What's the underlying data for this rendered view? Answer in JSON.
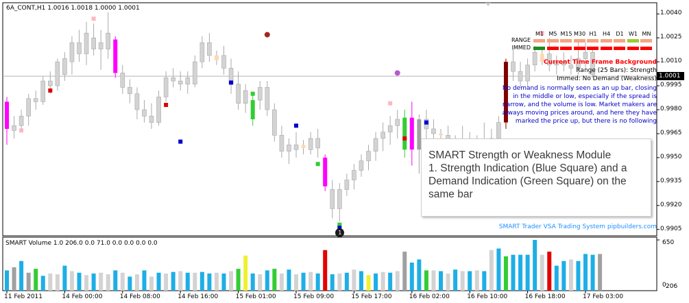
{
  "header": {
    "symbol_line": "6A_CONT,H1  1.0016 1.0018 1.0000 1.0001"
  },
  "volume_panel": {
    "title": "SMART Volume 1.0 206.0 0.0 71.0 0.0 0.0 0.0 0.0",
    "y_ticks": [
      "650",
      "0",
      "206"
    ]
  },
  "mtf_table": {
    "timeframes": [
      "M1",
      "M5",
      "M15",
      "M30",
      "H1",
      "H4",
      "D1",
      "W1",
      "MN"
    ],
    "rows": [
      {
        "label": "RANGE",
        "colors": [
          "#f4a582",
          "#f4a582",
          "#f4a582",
          "#f4a582",
          "#f4a582",
          "#f4a582",
          "#f4a582",
          "#9acd32",
          "#f4a582"
        ]
      },
      {
        "label": "IMMED",
        "colors": [
          "#228b22",
          "#ff0000",
          "#ff0000",
          "#ff0000",
          "#ff0000",
          "#ff0000",
          "#ff0000",
          "#ff0000",
          "#ff0000"
        ]
      }
    ]
  },
  "info_panel": {
    "title": "Current Time Frame Background",
    "range_line": "Range (25 Bars): Strength",
    "immed_line": "Immed: No Demand (Weakness)",
    "description": "No demand is normally seen as an up bar, closing in the middle or low, especially if the spread is narrow, and the volume is low. Market makers are always moving prices around, and here they have marked the price up, but there is no following"
  },
  "smart_box": {
    "lines": [
      "SMART Strength or Weakness Module",
      "1. Strength Indication (Blue Square) and a",
      "Demand Indication (Green Square) on the",
      "same bar"
    ]
  },
  "footer": {
    "brand": "SMART Trader VSA Trading System pipbuilders.com"
  },
  "price_tag": "1.0001",
  "marker_label": "1",
  "colors": {
    "candle_neutral": "#d3d3d3",
    "candle_outline": "#a9a9a9",
    "magenta": "#ff00ff",
    "green": "#32cd32",
    "maroon": "#800000",
    "gray_bar": "#a0a0a0",
    "blue_square": "#0000cd",
    "red_square": "#dc0000",
    "pink_square": "#ffb6c1",
    "vol_light": "#d3d3d3",
    "vol_blue": "#1eaee6",
    "vol_green": "#32cd32",
    "vol_red": "#e60000",
    "vol_gray": "#a0a0a0",
    "vol_yellow": "#f0f032"
  },
  "chart_data": {
    "type": "candlestick",
    "symbol": "6A_CONT",
    "timeframe": "H1",
    "y_ticks": [
      "1.0040",
      "1.0025",
      "1.0010",
      "0.9995",
      "0.9980",
      "0.9965",
      "0.9950",
      "0.9935",
      "0.9920",
      "0.9905"
    ],
    "ylim": [
      0.9901,
      1.0047
    ],
    "x_ticks": [
      "11 Feb 2011",
      "14 Feb 00:00",
      "14 Feb 08:00",
      "14 Feb 16:00",
      "15 Feb 01:00",
      "15 Feb 09:00",
      "15 Feb 17:00",
      "16 Feb 02:00",
      "16 Feb 10:00",
      "16 Feb 18:00",
      "17 Feb 03:00"
    ],
    "x_tick_bars": [
      0,
      8,
      16,
      24,
      32,
      40,
      48,
      56,
      64,
      72,
      80
    ],
    "current_price": 1.0001,
    "candles": [
      {
        "o": 0.9968,
        "h": 0.9988,
        "l": 0.9958,
        "c": 0.9985,
        "t": "magenta"
      },
      {
        "o": 0.997,
        "h": 0.9976,
        "l": 0.9962,
        "c": 0.9967,
        "t": "n"
      },
      {
        "o": 0.997,
        "h": 0.998,
        "l": 0.9966,
        "c": 0.9976,
        "t": "n"
      },
      {
        "o": 0.9976,
        "h": 0.999,
        "l": 0.997,
        "c": 0.9987,
        "t": "n"
      },
      {
        "o": 0.9987,
        "h": 0.9992,
        "l": 0.998,
        "c": 0.9985,
        "t": "n"
      },
      {
        "o": 0.9985,
        "h": 1.0001,
        "l": 0.9983,
        "c": 0.9998,
        "t": "n"
      },
      {
        "o": 0.9998,
        "h": 1.0004,
        "l": 0.999,
        "c": 0.9995,
        "t": "n"
      },
      {
        "o": 0.9995,
        "h": 1.0012,
        "l": 0.9992,
        "c": 1.001,
        "t": "n"
      },
      {
        "o": 1.0002,
        "h": 1.0016,
        "l": 0.9998,
        "c": 1.0012,
        "t": "n"
      },
      {
        "o": 1.001,
        "h": 1.0026,
        "l": 1.0002,
        "c": 1.0022,
        "t": "n"
      },
      {
        "o": 1.0022,
        "h": 1.003,
        "l": 1.001,
        "c": 1.0015,
        "t": "n"
      },
      {
        "o": 1.0015,
        "h": 1.0035,
        "l": 1.0008,
        "c": 1.0028,
        "t": "n"
      },
      {
        "o": 1.0025,
        "h": 1.0034,
        "l": 1.0014,
        "c": 1.0018,
        "t": "n"
      },
      {
        "o": 1.0018,
        "h": 1.003,
        "l": 1.0005,
        "c": 1.0022,
        "t": "n"
      },
      {
        "o": 1.0018,
        "h": 1.0041,
        "l": 1.0012,
        "c": 1.0028,
        "t": "n"
      },
      {
        "o": 1.0003,
        "h": 1.0026,
        "l": 1.0,
        "c": 1.0024,
        "t": "magenta"
      },
      {
        "o": 1.0003,
        "h": 1.0008,
        "l": 0.999,
        "c": 0.9994,
        "t": "n"
      },
      {
        "o": 0.9994,
        "h": 0.9999,
        "l": 0.9984,
        "c": 0.999,
        "t": "n"
      },
      {
        "o": 0.999,
        "h": 0.9994,
        "l": 0.9974,
        "c": 0.998,
        "t": "n"
      },
      {
        "o": 0.998,
        "h": 0.9986,
        "l": 0.9972,
        "c": 0.9976,
        "t": "n"
      },
      {
        "o": 0.9976,
        "h": 0.9984,
        "l": 0.9968,
        "c": 0.9972,
        "t": "n"
      },
      {
        "o": 0.9972,
        "h": 0.9992,
        "l": 0.997,
        "c": 0.9988,
        "t": "n"
      },
      {
        "o": 0.9988,
        "h": 1.0004,
        "l": 0.9985,
        "c": 1.0,
        "t": "n"
      },
      {
        "o": 1.0,
        "h": 1.0006,
        "l": 0.9994,
        "c": 0.9998,
        "t": "n"
      },
      {
        "o": 0.9998,
        "h": 1.0004,
        "l": 0.9992,
        "c": 0.9996,
        "t": "n"
      },
      {
        "o": 0.9996,
        "h": 1.0004,
        "l": 0.999,
        "c": 1.0,
        "t": "n"
      },
      {
        "o": 0.9996,
        "h": 1.0014,
        "l": 0.9994,
        "c": 1.001,
        "t": "n"
      },
      {
        "o": 1.001,
        "h": 1.0026,
        "l": 1.0006,
        "c": 1.0022,
        "t": "n"
      },
      {
        "o": 1.0022,
        "h": 1.0028,
        "l": 1.001,
        "c": 1.0014,
        "t": "n"
      },
      {
        "o": 1.0011,
        "h": 1.0017,
        "l": 1.0008,
        "c": 1.0014,
        "t": "peach"
      },
      {
        "o": 1.0014,
        "h": 1.002,
        "l": 1.0002,
        "c": 1.0006,
        "t": "n"
      },
      {
        "o": 1.0006,
        "h": 1.0012,
        "l": 0.999,
        "c": 0.9996,
        "t": "n"
      },
      {
        "o": 0.9996,
        "h": 1.0004,
        "l": 0.998,
        "c": 0.9984,
        "t": "n"
      },
      {
        "o": 0.9984,
        "h": 0.9996,
        "l": 0.9978,
        "c": 0.9992,
        "t": "n"
      },
      {
        "o": 0.9974,
        "h": 0.999,
        "l": 0.997,
        "c": 0.9986,
        "t": "green"
      },
      {
        "o": 0.9986,
        "h": 0.9998,
        "l": 0.998,
        "c": 0.9994,
        "t": "n"
      },
      {
        "o": 0.9994,
        "h": 0.9998,
        "l": 0.9976,
        "c": 0.998,
        "t": "n"
      },
      {
        "o": 0.998,
        "h": 0.9984,
        "l": 0.996,
        "c": 0.9964,
        "t": "n"
      },
      {
        "o": 0.9964,
        "h": 0.997,
        "l": 0.995,
        "c": 0.9954,
        "t": "n"
      },
      {
        "o": 0.9954,
        "h": 0.9962,
        "l": 0.9946,
        "c": 0.9958,
        "t": "n"
      },
      {
        "o": 0.9958,
        "h": 0.9966,
        "l": 0.995,
        "c": 0.9955,
        "t": "n"
      },
      {
        "o": 0.9956,
        "h": 0.9961,
        "l": 0.9952,
        "c": 0.9958,
        "t": "peach"
      },
      {
        "o": 0.9955,
        "h": 0.9966,
        "l": 0.9952,
        "c": 0.9962,
        "t": "n"
      },
      {
        "o": 0.9962,
        "h": 0.9968,
        "l": 0.995,
        "c": 0.9956,
        "t": "n"
      },
      {
        "o": 0.9932,
        "h": 0.9952,
        "l": 0.9929,
        "c": 0.995,
        "t": "magenta"
      },
      {
        "o": 0.993,
        "h": 0.9936,
        "l": 0.9912,
        "c": 0.9918,
        "t": "n"
      },
      {
        "o": 0.9918,
        "h": 0.9934,
        "l": 0.991,
        "c": 0.993,
        "t": "n"
      },
      {
        "o": 0.993,
        "h": 0.994,
        "l": 0.9926,
        "c": 0.9936,
        "t": "n"
      },
      {
        "o": 0.9936,
        "h": 0.9946,
        "l": 0.993,
        "c": 0.9942,
        "t": "n"
      },
      {
        "o": 0.9942,
        "h": 0.9952,
        "l": 0.9938,
        "c": 0.9948,
        "t": "n"
      },
      {
        "o": 0.9948,
        "h": 0.9958,
        "l": 0.9942,
        "c": 0.9954,
        "t": "n"
      },
      {
        "o": 0.9954,
        "h": 0.9966,
        "l": 0.9948,
        "c": 0.9962,
        "t": "n"
      },
      {
        "o": 0.9962,
        "h": 0.9972,
        "l": 0.9954,
        "c": 0.9966,
        "t": "n"
      },
      {
        "o": 0.9966,
        "h": 0.9976,
        "l": 0.9958,
        "c": 0.997,
        "t": "n"
      },
      {
        "o": 0.997,
        "h": 0.998,
        "l": 0.9962,
        "c": 0.9974,
        "t": "n"
      },
      {
        "o": 0.9955,
        "h": 0.998,
        "l": 0.995,
        "c": 0.9975,
        "t": "green"
      },
      {
        "o": 0.9975,
        "h": 0.9985,
        "l": 0.9945,
        "c": 0.9955,
        "t": "magenta"
      },
      {
        "o": 0.9955,
        "h": 0.9977,
        "l": 0.994,
        "c": 0.9974,
        "t": "gray"
      },
      {
        "o": 0.9974,
        "h": 0.998,
        "l": 0.9962,
        "c": 0.9968,
        "t": "n"
      },
      {
        "o": 0.9968,
        "h": 0.9974,
        "l": 0.996,
        "c": 0.9965,
        "t": "n"
      },
      {
        "o": 0.9965,
        "h": 0.9968,
        "l": 0.996,
        "c": 0.9964,
        "t": "peach"
      },
      {
        "o": 0.9964,
        "h": 0.997,
        "l": 0.9945,
        "c": 0.995,
        "t": "n"
      },
      {
        "o": 0.995,
        "h": 0.9964,
        "l": 0.994,
        "c": 0.996,
        "t": "n"
      },
      {
        "o": 0.996,
        "h": 0.997,
        "l": 0.995,
        "c": 0.9956,
        "t": "n"
      },
      {
        "o": 0.9956,
        "h": 0.9966,
        "l": 0.9944,
        "c": 0.9948,
        "t": "n"
      },
      {
        "o": 0.9948,
        "h": 0.9964,
        "l": 0.9944,
        "c": 0.996,
        "t": "n"
      },
      {
        "o": 0.996,
        "h": 0.9972,
        "l": 0.995,
        "c": 0.9955,
        "t": "n"
      },
      {
        "o": 0.9955,
        "h": 0.9968,
        "l": 0.995,
        "c": 0.9962,
        "t": "n"
      },
      {
        "o": 0.9962,
        "h": 0.9976,
        "l": 0.9956,
        "c": 0.9972,
        "t": "n"
      },
      {
        "o": 0.9972,
        "h": 1.0012,
        "l": 0.9968,
        "c": 1.001,
        "t": "maroon"
      },
      {
        "o": 1.001,
        "h": 1.0018,
        "l": 0.9998,
        "c": 1.0004,
        "t": "n"
      },
      {
        "o": 1.0004,
        "h": 1.001,
        "l": 0.9994,
        "c": 0.9998,
        "t": "n"
      },
      {
        "o": 0.9998,
        "h": 1.0012,
        "l": 0.9994,
        "c": 1.0008,
        "t": "n"
      },
      {
        "o": 1.0008,
        "h": 1.002,
        "l": 1.0004,
        "c": 1.0016,
        "t": "n"
      },
      {
        "o": 1.001,
        "h": 1.0018,
        "l": 1.0008,
        "c": 1.0015,
        "t": "peach"
      },
      {
        "o": 1.0015,
        "h": 1.0025,
        "l": 1.0004,
        "c": 1.0008,
        "t": "n"
      },
      {
        "o": 1.0008,
        "h": 1.0014,
        "l": 1.0002,
        "c": 1.001,
        "t": "n"
      },
      {
        "o": 1.001,
        "h": 1.0016,
        "l": 1.0004,
        "c": 1.0008,
        "t": "n"
      },
      {
        "o": 1.0008,
        "h": 1.0014,
        "l": 1.0002,
        "c": 1.0006,
        "t": "n"
      },
      {
        "o": 1.0006,
        "h": 1.0024,
        "l": 1.0002,
        "c": 1.0012,
        "t": "n"
      },
      {
        "o": 1.0012,
        "h": 1.0022,
        "l": 1.0006,
        "c": 1.0016,
        "t": "n"
      },
      {
        "o": 1.0002,
        "h": 1.0018,
        "l": 1.0,
        "c": 1.0016,
        "t": "n"
      }
    ],
    "indicator_squares": [
      {
        "bar": 2,
        "y": 0.9967,
        "c": "pink"
      },
      {
        "bar": 6,
        "y": 0.9992,
        "c": "red"
      },
      {
        "bar": 12,
        "y": 1.0037,
        "c": "pink"
      },
      {
        "bar": 24,
        "y": 0.996,
        "c": "blue"
      },
      {
        "bar": 22,
        "y": 0.9983,
        "c": "red"
      },
      {
        "bar": 31,
        "y": 0.9997,
        "c": "blue"
      },
      {
        "bar": 34,
        "y": 0.999,
        "c": "green"
      },
      {
        "bar": 40,
        "y": 0.997,
        "c": "blue"
      },
      {
        "bar": 43,
        "y": 0.9946,
        "c": "green"
      },
      {
        "bar": 46,
        "y": 0.9908,
        "c": "green"
      },
      {
        "bar": 46,
        "y": 0.9906,
        "c": "blue"
      },
      {
        "bar": 53,
        "y": 0.9984,
        "c": "pink"
      },
      {
        "bar": 55,
        "y": 0.9962,
        "c": "red"
      },
      {
        "bar": 58,
        "y": 0.9972,
        "c": "blue"
      },
      {
        "bar": 74,
        "y": 1.0028,
        "c": "pink"
      }
    ],
    "indicator_dots": [
      {
        "bar": 36,
        "y": 1.0027,
        "c": "maroon"
      },
      {
        "bar": 54,
        "y": 1.0003,
        "c": "purple"
      }
    ],
    "volume": {
      "ylim": [
        0,
        650
      ],
      "values": [
        260,
        300,
        240,
        230,
        200,
        190,
        220,
        210,
        230,
        250,
        230,
        200,
        220,
        230,
        210,
        260,
        230,
        180,
        210,
        260,
        180,
        230,
        220,
        240,
        250,
        230,
        230,
        240,
        220,
        230,
        220,
        250,
        280,
        200,
        220,
        210,
        260,
        280,
        220,
        270,
        210,
        230,
        240,
        220,
        260,
        210,
        220,
        230,
        270,
        250,
        200,
        220,
        240,
        230,
        250,
        330,
        360,
        400,
        260,
        260,
        250,
        220,
        270,
        250,
        250,
        260,
        250,
        330,
        430,
        440,
        460,
        460,
        460,
        470,
        460,
        500,
        320,
        380,
        400,
        440,
        470,
        460,
        470
      ],
      "colors": [
        "blue",
        "gray",
        "blue",
        "gray",
        "green",
        "blue",
        "light",
        "light",
        "blue",
        "light",
        "blue",
        "light",
        "blue",
        "light",
        "light",
        "blue",
        "light",
        "blue",
        "light",
        "blue",
        "light",
        "blue",
        "light",
        "blue",
        "light",
        "blue",
        "light",
        "blue",
        "blue",
        "light",
        "blue",
        "light",
        "green",
        "yellow",
        "blue",
        "light",
        "blue",
        "green",
        "light",
        "blue",
        "light",
        "blue",
        "light",
        "blue",
        "red",
        "blue",
        "light",
        "blue",
        "light",
        "blue",
        "yellow",
        "blue",
        "light",
        "blue",
        "light",
        "gray",
        "blue",
        "blue",
        "green",
        "light",
        "blue",
        "light",
        "blue",
        "light",
        "blue",
        "light",
        "blue",
        "light",
        "blue",
        "green",
        "blue",
        "blue",
        "blue",
        "blue",
        "light",
        "red",
        "blue",
        "blue",
        "light",
        "blue",
        "blue",
        "blue",
        "gray"
      ],
      "overrides": {
        "2": 380,
        "4": 280,
        "8": 320,
        "33": 450,
        "44": 520,
        "55": 500,
        "67": 520,
        "68": 540,
        "73": 650,
        "79": 380
      }
    }
  }
}
